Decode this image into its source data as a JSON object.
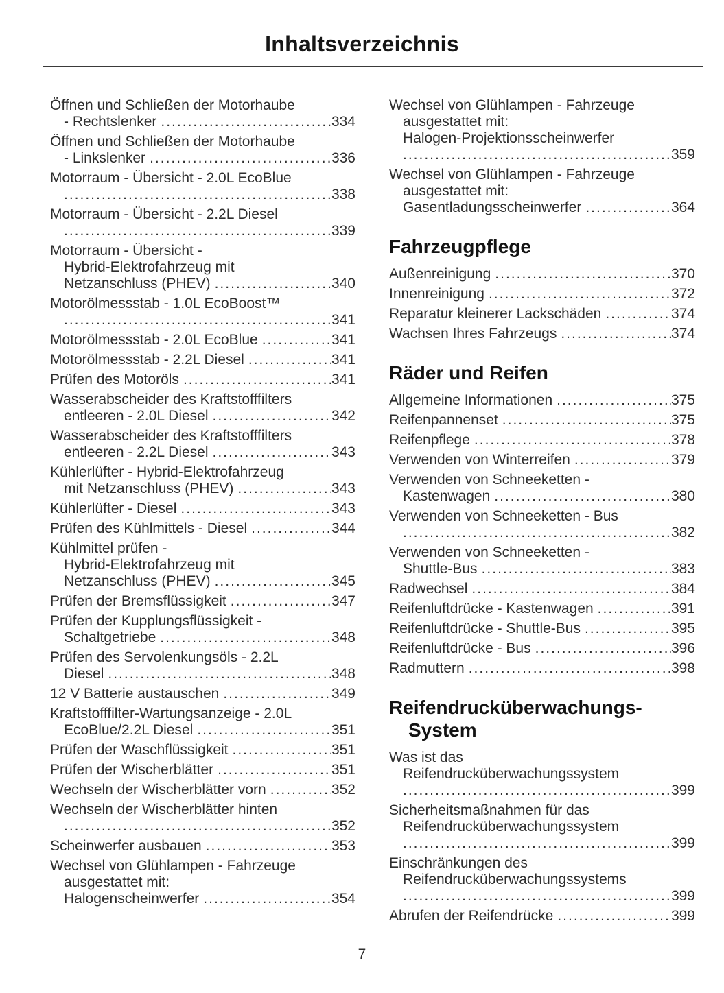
{
  "page": {
    "title": "Inhaltsverzeichnis",
    "number": "7"
  },
  "toc": {
    "left": [
      {
        "text": [
          "Öffnen und Schließen der Motorhaube"
        ],
        "tail": "- Rechtslenker",
        "page": "334"
      },
      {
        "text": [
          "Öffnen und Schließen der Motorhaube"
        ],
        "tail": "- Linkslenker",
        "page": "336"
      },
      {
        "text": [
          "Motorraum - Übersicht - 2.0L EcoBlue"
        ],
        "tail": "",
        "page": "338"
      },
      {
        "text": [
          "Motorraum - Übersicht - 2.2L Diesel"
        ],
        "tail": "",
        "page": "339"
      },
      {
        "text": [
          "Motorraum - Übersicht -",
          "Hybrid-Elektrofahrzeug mit"
        ],
        "tail": "Netzanschluss (PHEV)",
        "page": "340"
      },
      {
        "text": [
          "Motorölmessstab - 1.0L EcoBoost™"
        ],
        "tail": "",
        "page": "341"
      },
      {
        "text": [],
        "tail": "Motorölmessstab - 2.0L EcoBlue",
        "page": "341"
      },
      {
        "text": [],
        "tail": "Motorölmessstab - 2.2L Diesel",
        "page": "341"
      },
      {
        "text": [],
        "tail": "Prüfen des Motoröls",
        "page": "341"
      },
      {
        "text": [
          "Wasserabscheider des Kraftstofffilters"
        ],
        "tail": "entleeren - 2.0L Diesel",
        "page": "342"
      },
      {
        "text": [
          "Wasserabscheider des Kraftstofffilters"
        ],
        "tail": "entleeren - 2.2L Diesel",
        "page": "343"
      },
      {
        "text": [
          "Kühlerlüfter - Hybrid-Elektrofahrzeug"
        ],
        "tail": "mit Netzanschluss (PHEV)",
        "page": "343"
      },
      {
        "text": [],
        "tail": "Kühlerlüfter - Diesel",
        "page": "343"
      },
      {
        "text": [],
        "tail": "Prüfen des Kühlmittels - Diesel",
        "page": "344"
      },
      {
        "text": [
          "Kühlmittel prüfen -",
          "Hybrid-Elektrofahrzeug mit"
        ],
        "tail": "Netzanschluss (PHEV)",
        "page": "345"
      },
      {
        "text": [],
        "tail": "Prüfen der Bremsflüssigkeit",
        "page": "347"
      },
      {
        "text": [
          "Prüfen der Kupplungsflüssigkeit -"
        ],
        "tail": "Schaltgetriebe",
        "page": "348"
      },
      {
        "text": [
          "Prüfen des Servolenkungsöls - 2.2L"
        ],
        "tail": "Diesel",
        "page": "348"
      },
      {
        "text": [],
        "tail": "12 V Batterie austauschen",
        "page": "349"
      },
      {
        "text": [
          "Kraftstofffilter-Wartungsanzeige - 2.0L"
        ],
        "tail": "EcoBlue/2.2L Diesel",
        "page": "351"
      },
      {
        "text": [],
        "tail": "Prüfen der Waschflüssigkeit",
        "page": "351"
      },
      {
        "text": [],
        "tail": "Prüfen der Wischerblätter",
        "page": "351"
      },
      {
        "text": [],
        "tail": "Wechseln der Wischerblätter vorn",
        "page": "352"
      },
      {
        "text": [
          "Wechseln der Wischerblätter hinten"
        ],
        "tail": "",
        "page": "352"
      },
      {
        "text": [],
        "tail": "Scheinwerfer ausbauen",
        "page": "353"
      },
      {
        "text": [
          "Wechsel von Glühlampen - Fahrzeuge",
          "ausgestattet mit:"
        ],
        "tail": "Halogenscheinwerfer",
        "page": "354"
      }
    ],
    "right": [
      {
        "text": [
          "Wechsel von Glühlampen - Fahrzeuge",
          "ausgestattet mit:",
          "Halogen-Projektionsscheinwerfer"
        ],
        "tail": "",
        "page": "359"
      },
      {
        "text": [
          "Wechsel von Glühlampen - Fahrzeuge",
          "ausgestattet mit:"
        ],
        "tail": "Gasentladungsscheinwerfer",
        "page": "364"
      },
      {
        "heading": [
          "Fahrzeugpflege"
        ]
      },
      {
        "text": [],
        "tail": "Außenreinigung",
        "page": "370"
      },
      {
        "text": [],
        "tail": "Innenreinigung",
        "page": "372"
      },
      {
        "text": [],
        "tail": "Reparatur kleinerer Lackschäden",
        "page": "374"
      },
      {
        "text": [],
        "tail": "Wachsen Ihres Fahrzeugs",
        "page": "374"
      },
      {
        "heading": [
          "Räder und Reifen"
        ]
      },
      {
        "text": [],
        "tail": "Allgemeine Informationen",
        "page": "375"
      },
      {
        "text": [],
        "tail": "Reifenpannenset",
        "page": "375"
      },
      {
        "text": [],
        "tail": "Reifenpflege",
        "page": "378"
      },
      {
        "text": [],
        "tail": "Verwenden von Winterreifen",
        "page": "379"
      },
      {
        "text": [
          "Verwenden von Schneeketten -"
        ],
        "tail": "Kastenwagen",
        "page": "380"
      },
      {
        "text": [
          "Verwenden von Schneeketten - Bus"
        ],
        "tail": "",
        "page": "382"
      },
      {
        "text": [
          "Verwenden von Schneeketten -"
        ],
        "tail": "Shuttle-Bus",
        "page": "383"
      },
      {
        "text": [],
        "tail": "Radwechsel",
        "page": "384"
      },
      {
        "text": [],
        "tail": "Reifenluftdrücke - Kastenwagen",
        "page": "391"
      },
      {
        "text": [],
        "tail": "Reifenluftdrücke - Shuttle-Bus",
        "page": "395"
      },
      {
        "text": [],
        "tail": "Reifenluftdrücke - Bus",
        "page": "396"
      },
      {
        "text": [],
        "tail": "Radmuttern",
        "page": "398"
      },
      {
        "heading": [
          "Reifendrucküberwachungs-",
          "System"
        ]
      },
      {
        "text": [
          "Was ist das",
          "Reifendrucküberwachungssystem"
        ],
        "tail": "",
        "page": "399"
      },
      {
        "text": [
          "Sicherheitsmaßnahmen für das",
          "Reifendrucküberwachungssystem"
        ],
        "tail": "",
        "page": "399"
      },
      {
        "text": [
          "Einschränkungen des",
          "Reifendrucküberwachungssystems"
        ],
        "tail": "",
        "page": "399"
      },
      {
        "text": [],
        "tail": "Abrufen der Reifendrücke",
        "page": "399"
      }
    ]
  }
}
